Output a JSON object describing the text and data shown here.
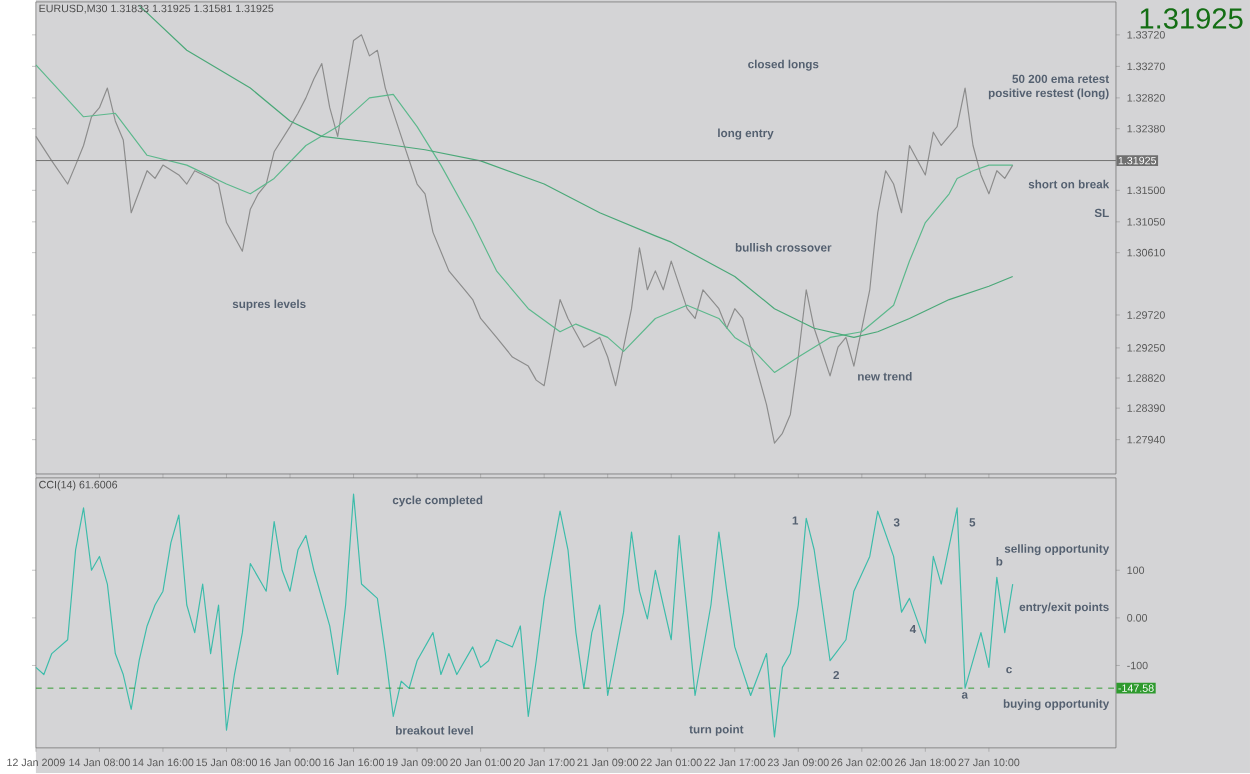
{
  "chart_data": [
    {
      "type": "line",
      "title": "EURUSD,M30 1.31833 1.31925 1.31581 1.31925",
      "subtitle": "1.31925",
      "categories": [
        null,
        null,
        null,
        null,
        null,
        null,
        null,
        null,
        null,
        null,
        null,
        null,
        null,
        null,
        null,
        null,
        null,
        null,
        null,
        null,
        null,
        null,
        null,
        null,
        null,
        null,
        null,
        null,
        null,
        null,
        null,
        null,
        null,
        null,
        null,
        null,
        null,
        null,
        null,
        null,
        null,
        null,
        null,
        null,
        null,
        null,
        null,
        null,
        null,
        null,
        null,
        null,
        null,
        null,
        null,
        null,
        null,
        null,
        null,
        null,
        null,
        null,
        null,
        null,
        null,
        null,
        null,
        null,
        null,
        null,
        null,
        null,
        null,
        null,
        null,
        null,
        null,
        null,
        null,
        null,
        null,
        null,
        null,
        null,
        null,
        null,
        null,
        null,
        null,
        null,
        null,
        null,
        null,
        null,
        null,
        null,
        null,
        null,
        null,
        null,
        null,
        null,
        null,
        null,
        null,
        null,
        null,
        null,
        null,
        null,
        null,
        null,
        null,
        null,
        null,
        null,
        null,
        null,
        null,
        null,
        null,
        null,
        null,
        null,
        null,
        null,
        null,
        null,
        null,
        null,
        null,
        null,
        null,
        null,
        null,
        null,
        null
      ],
      "ylim": [
        1.2745,
        1.3419
      ],
      "tick_labels": "y",
      "marker": "none",
      "line_style": "solid",
      "yticks": [
        {
          "value": 1.3372,
          "label": "1.33720"
        },
        {
          "value": 1.3327,
          "label": "1.33270"
        },
        {
          "value": 1.3282,
          "label": "1.32820"
        },
        {
          "value": 1.3238,
          "label": "1.32380"
        },
        {
          "value": 1.315,
          "label": "1.31500"
        },
        {
          "value": 1.3105,
          "label": "1.31050"
        },
        {
          "value": 1.3061,
          "label": "1.30610"
        },
        {
          "value": 1.2972,
          "label": "1.29720"
        },
        {
          "value": 1.2925,
          "label": "1.29250"
        },
        {
          "value": 1.2882,
          "label": "1.28820"
        },
        {
          "value": 1.2839,
          "label": "1.28390"
        },
        {
          "value": 1.2794,
          "label": "1.27940"
        }
      ],
      "ref_lines": [
        {
          "axis": "y",
          "value": 1.31925,
          "label": "1.31925",
          "color": "#707070",
          "line_style": "solid"
        }
      ],
      "series": [
        {
          "color": "#8c8c8c",
          "values": [
            1.3227,
            null,
            1.3192,
            null,
            1.3159,
            1.3186,
            1.3214,
            1.3255,
            1.3268,
            1.3296,
            1.3249,
            1.3222,
            1.3118,
            null,
            1.3178,
            1.3167,
            1.3186,
            null,
            1.3172,
            1.3159,
            1.3178,
            null,
            1.3167,
            1.3159,
            1.3104,
            null,
            1.3063,
            1.3123,
            1.3145,
            1.3159,
            1.3205,
            null,
            1.3241,
            1.326,
            1.3282,
            1.3309,
            1.3331,
            1.3268,
            1.3227,
            1.3296,
            1.3364,
            1.3372,
            1.3342,
            1.335,
            1.3296,
            null,
            1.3227,
            null,
            1.3159,
            1.3145,
            1.309,
            null,
            1.3035,
            null,
            1.3008,
            1.2994,
            1.2967,
            null,
            1.294,
            null,
            1.2912,
            null,
            1.2899,
            1.2879,
            1.2871,
            null,
            1.2994,
            1.2967,
            null,
            1.2926,
            null,
            1.294,
            1.2912,
            1.2871,
            null,
            1.2981,
            1.3068,
            1.3008,
            1.3035,
            1.3008,
            1.3049,
            null,
            1.2981,
            1.2967,
            1.3008,
            null,
            1.2981,
            1.2953,
            1.2981,
            1.2967,
            1.2926,
            null,
            1.2844,
            1.2789,
            1.2803,
            1.283,
            1.2912,
            1.3008,
            1.2953,
            null,
            1.2885,
            1.2926,
            1.294,
            1.2899,
            1.2953,
            1.3008,
            1.3118,
            1.3178,
            1.3159,
            1.3118,
            1.3214,
            null,
            1.3172,
            1.3233,
            1.3214,
            null,
            1.3241,
            1.3296,
            1.3214,
            1.3172,
            1.3145,
            1.3178,
            1.3167,
            1.3186,
            null,
            null,
            null,
            null,
            null,
            null,
            null,
            null,
            null,
            null,
            null,
            null,
            null
          ]
        },
        {
          "color": "#5cb88c",
          "values": [
            1.3329,
            null,
            null,
            null,
            null,
            null,
            1.3255,
            null,
            null,
            null,
            1.326,
            null,
            null,
            null,
            1.32,
            null,
            null,
            null,
            null,
            1.3186,
            null,
            null,
            null,
            null,
            1.3159,
            null,
            null,
            1.3145,
            null,
            null,
            1.3167,
            null,
            null,
            null,
            1.3214,
            null,
            null,
            null,
            1.3241,
            null,
            null,
            null,
            1.3282,
            null,
            null,
            1.3287,
            null,
            null,
            1.3241,
            null,
            null,
            1.3186,
            null,
            null,
            null,
            1.3104,
            null,
            null,
            1.3035,
            null,
            null,
            null,
            1.2981,
            null,
            null,
            null,
            1.2948,
            null,
            1.2959,
            null,
            null,
            null,
            1.294,
            null,
            1.292,
            null,
            null,
            null,
            1.2967,
            null,
            null,
            null,
            1.2986,
            null,
            null,
            null,
            1.2967,
            null,
            1.294,
            null,
            1.2926,
            null,
            null,
            1.289,
            null,
            null,
            1.2912,
            null,
            null,
            null,
            1.294,
            null,
            null,
            null,
            1.2948,
            null,
            null,
            null,
            1.2986,
            null,
            1.3049,
            null,
            1.3104,
            null,
            null,
            1.3145,
            1.3167,
            null,
            1.3178,
            null,
            1.3186,
            null,
            null,
            1.3186,
            null,
            null,
            null,
            null,
            null,
            null,
            null,
            null,
            null,
            null,
            null,
            null,
            null
          ]
        },
        {
          "color": "#4aa878",
          "values": [
            null,
            null,
            null,
            null,
            null,
            null,
            null,
            null,
            null,
            null,
            null,
            null,
            null,
            1.3414,
            null,
            null,
            null,
            null,
            null,
            1.335,
            null,
            null,
            null,
            null,
            null,
            null,
            null,
            1.3296,
            null,
            null,
            null,
            null,
            1.3249,
            null,
            null,
            null,
            1.3227,
            null,
            null,
            null,
            null,
            null,
            1.3219,
            null,
            null,
            null,
            null,
            null,
            null,
            1.3208,
            null,
            null,
            null,
            null,
            null,
            null,
            1.3192,
            null,
            null,
            null,
            null,
            null,
            null,
            null,
            1.3159,
            null,
            null,
            null,
            null,
            null,
            null,
            1.3118,
            null,
            null,
            null,
            null,
            null,
            null,
            1.3085,
            null,
            1.3076,
            null,
            null,
            null,
            null,
            null,
            null,
            null,
            1.3027,
            null,
            null,
            null,
            null,
            1.2981,
            null,
            null,
            null,
            null,
            1.2953,
            null,
            null,
            null,
            null,
            1.294,
            null,
            null,
            1.2948,
            null,
            null,
            null,
            1.2967,
            null,
            null,
            null,
            null,
            1.2994,
            null,
            null,
            null,
            null,
            1.3013,
            null,
            null,
            1.3027,
            null,
            null,
            null,
            null,
            null,
            null,
            null,
            null,
            null,
            null,
            null,
            null,
            null
          ]
        }
      ],
      "annotations": [
        "supres levels",
        "bullish crossover",
        "new trend",
        "closed longs",
        "long entry",
        "50 200 ema retest",
        "positive restest (long)",
        "short on break",
        "SL"
      ]
    },
    {
      "type": "line",
      "title": "CCI(14) 61.6006",
      "ylim": [
        -273,
        294
      ],
      "marker": "none",
      "line_style": "solid",
      "categories": [
        "12 Jan 2009",
        null,
        null,
        null,
        null,
        null,
        null,
        null,
        "14 Jan 08:00",
        null,
        null,
        null,
        null,
        null,
        null,
        null,
        "14 Jan 16:00",
        null,
        null,
        null,
        null,
        null,
        null,
        null,
        "15 Jan 08:00",
        null,
        null,
        null,
        null,
        null,
        null,
        null,
        "16 Jan 00:00",
        null,
        null,
        null,
        null,
        null,
        null,
        null,
        "16 Jan 16:00",
        null,
        null,
        null,
        null,
        null,
        null,
        null,
        "19 Jan 09:00",
        null,
        null,
        null,
        null,
        null,
        null,
        null,
        "20 Jan 01:00",
        null,
        null,
        null,
        null,
        null,
        null,
        null,
        "20 Jan 17:00",
        null,
        null,
        null,
        null,
        null,
        null,
        null,
        "21 Jan 09:00",
        null,
        null,
        null,
        null,
        null,
        null,
        null,
        "22 Jan 01:00",
        null,
        null,
        null,
        null,
        null,
        null,
        null,
        "22 Jan 17:00",
        null,
        null,
        null,
        null,
        null,
        null,
        null,
        "23 Jan 09:00",
        null,
        null,
        null,
        null,
        null,
        null,
        null,
        "26 Jan 02:00",
        null,
        null,
        null,
        null,
        null,
        null,
        null,
        "26 Jan 18:00",
        null,
        null,
        null,
        null,
        null,
        null,
        null,
        "27 Jan 10:00",
        null,
        null,
        null,
        null,
        null,
        null,
        null,
        null,
        null,
        null,
        null,
        null,
        null,
        null,
        null,
        null
      ],
      "yticks": [
        100,
        {
          "value": 0,
          "label": "0.00"
        },
        -100
      ],
      "ref_lines": [
        {
          "axis": "y",
          "value": -147.58,
          "label": "-147.58",
          "color": "#2e9a2e",
          "line_style": "dashed"
        }
      ],
      "series": [
        {
          "color": "#3cbcaa",
          "values": [
            -104,
            -119,
            -75,
            null,
            -46,
            143,
            231,
            100,
            129,
            71,
            -75,
            -119,
            -192,
            -90,
            -17,
            27,
            56,
            158,
            216,
            27,
            -31,
            71,
            -75,
            27,
            -236,
            -119,
            -31,
            114,
            null,
            56,
            202,
            100,
            56,
            143,
            173,
            100,
            null,
            -17,
            -119,
            27,
            260,
            71,
            null,
            41,
            -75,
            -207,
            -133,
            -148,
            -90,
            null,
            -31,
            -119,
            -75,
            -119,
            null,
            -61,
            -104,
            -90,
            -46,
            null,
            -61,
            -17,
            -207,
            -90,
            41,
            null,
            224,
            143,
            -31,
            -148,
            -31,
            27,
            -163,
            null,
            12,
            180,
            56,
            -2,
            100,
            null,
            -46,
            173,
            12,
            -163,
            null,
            27,
            180,
            56,
            -61,
            null,
            -163,
            -119,
            -75,
            -250,
            -104,
            -75,
            27,
            209,
            143,
            27,
            -90,
            null,
            -46,
            56,
            null,
            129,
            224,
            null,
            129,
            12,
            41,
            null,
            -53,
            129,
            71,
            null,
            231,
            -148,
            null,
            -31,
            -104,
            85,
            -31,
            71,
            null,
            null,
            null,
            null,
            null,
            null,
            null,
            null,
            null,
            null,
            null,
            null,
            null
          ]
        }
      ],
      "annotations": [
        "cycle completed",
        "breakout level",
        "turn point",
        "selling opportunity",
        "entry/exit points",
        "buying opportunity",
        "1",
        "2",
        "3",
        "4",
        "5",
        "a",
        "b",
        "c"
      ]
    }
  ]
}
